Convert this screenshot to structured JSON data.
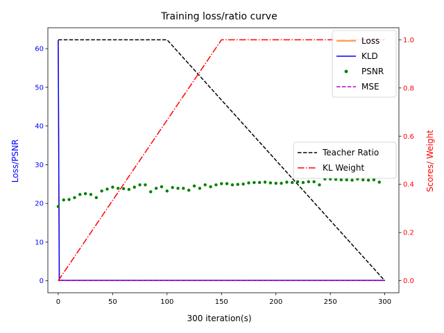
{
  "chart_data": {
    "type": "line",
    "title": "Training loss/ratio curve",
    "xlabel": "300 iteration(s)",
    "ylabel_left": "Loss/PSNR",
    "ylabel_right": "Scores/ Weight",
    "xlim": [
      -9.5,
      313
    ],
    "ylim_left": [
      -3.1,
      65.4
    ],
    "ylim_right": [
      -0.05,
      1.05
    ],
    "xticks": [
      "0",
      "50",
      "100",
      "150",
      "200",
      "250",
      "300"
    ],
    "yticks_left": [
      "0",
      "10",
      "20",
      "30",
      "40",
      "50",
      "60"
    ],
    "yticks_right": [
      "0.0",
      "0.2",
      "0.4",
      "0.6",
      "0.8",
      "1.0"
    ],
    "colors": {
      "left_axis": "#0000ff",
      "right_axis": "#ff0000"
    },
    "legend_upper": {
      "placement": "top-right",
      "entries": [
        {
          "label": "Loss",
          "color": "#ff7f0e",
          "style": "solid"
        },
        {
          "label": "KLD",
          "color": "#0000ff",
          "style": "solid"
        },
        {
          "label": "PSNR",
          "color": "#008000",
          "style": "dots"
        },
        {
          "label": "MSE",
          "color": "#bf00bf",
          "style": "dashed"
        }
      ]
    },
    "legend_lower": {
      "placement": "center-right",
      "entries": [
        {
          "label": "Teacher Ratio",
          "color": "#000000",
          "style": "dashed"
        },
        {
          "label": "KL Weight",
          "color": "#ff0000",
          "style": "dashdot"
        }
      ]
    },
    "series": [
      {
        "name": "Loss",
        "axis": "left",
        "x": [
          0,
          1,
          300
        ],
        "y": [
          62.2,
          0.1,
          0.1
        ]
      },
      {
        "name": "KLD",
        "axis": "left",
        "x": [
          0,
          1,
          300
        ],
        "y": [
          62.2,
          0.1,
          0.1
        ]
      },
      {
        "name": "MSE",
        "axis": "left",
        "x": [
          0,
          300
        ],
        "y": [
          0.05,
          0.05
        ]
      },
      {
        "name": "PSNR",
        "axis": "left",
        "x": [
          0,
          5,
          10,
          15,
          20,
          25,
          30,
          35,
          40,
          45,
          50,
          55,
          60,
          65,
          70,
          75,
          80,
          85,
          90,
          95,
          100,
          105,
          110,
          115,
          120,
          125,
          130,
          135,
          140,
          145,
          150,
          155,
          160,
          165,
          170,
          175,
          180,
          185,
          190,
          195,
          200,
          205,
          210,
          215,
          220,
          225,
          230,
          235,
          240,
          245,
          250,
          255,
          260,
          265,
          270,
          275,
          280,
          285,
          290,
          295
        ],
        "y": [
          19.2,
          20.9,
          21.0,
          21.5,
          22.3,
          22.5,
          22.3,
          21.5,
          23.2,
          23.7,
          24.2,
          23.9,
          23.8,
          23.6,
          24.2,
          24.8,
          24.8,
          23.0,
          23.9,
          24.3,
          23.2,
          24.1,
          23.9,
          23.9,
          23.4,
          24.5,
          23.9,
          24.8,
          24.3,
          24.8,
          25.1,
          25.1,
          24.8,
          24.9,
          25.0,
          25.3,
          25.4,
          25.4,
          25.5,
          25.3,
          25.2,
          25.2,
          25.5,
          25.4,
          25.6,
          25.4,
          25.6,
          25.6,
          24.8,
          26.3,
          26.3,
          26.2,
          26.1,
          26.1,
          26.0,
          26.3,
          26.1,
          26.0,
          26.1,
          25.5
        ]
      },
      {
        "name": "Teacher Ratio",
        "axis": "right",
        "x": [
          0,
          100,
          300
        ],
        "y": [
          1.0,
          1.0,
          0.0
        ]
      },
      {
        "name": "KL Weight",
        "axis": "right",
        "x": [
          0,
          150,
          300
        ],
        "y": [
          0.0,
          1.0,
          1.0
        ]
      }
    ]
  }
}
